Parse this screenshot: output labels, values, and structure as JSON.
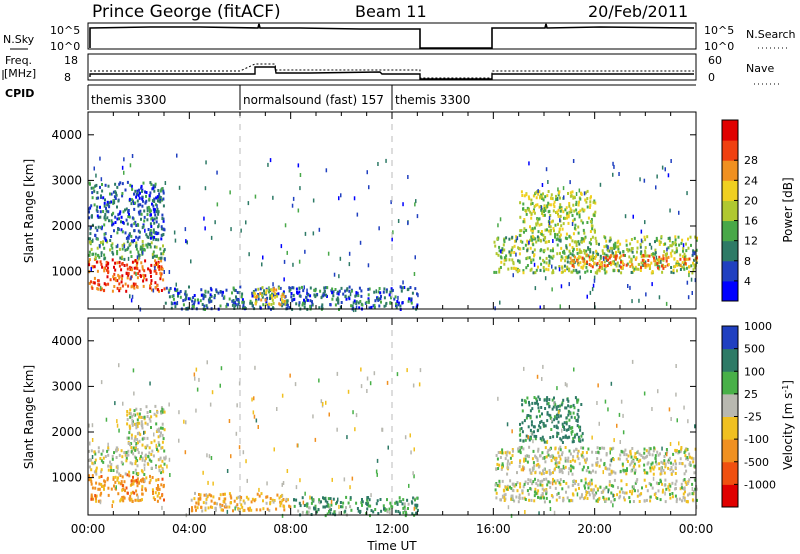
{
  "header": {
    "title": "Prince George (fitACF)",
    "beam": "Beam 11",
    "date": "20/Feb/2011"
  },
  "status_panels": {
    "nsky_label": "N.Sky",
    "nsearch_label": "N.Search",
    "freq_label_line1": "Freq.",
    "freq_label_line2": "[MHz]",
    "nave_label": "Nave",
    "cpid_label": "CPID",
    "nsky_ticks": [
      "10^5",
      "10^0"
    ],
    "nsearch_ticks": [
      "10^5",
      "10^0"
    ],
    "freq_ticks": [
      "18",
      "8"
    ],
    "nave_ticks": [
      "60",
      "0"
    ],
    "cpid_segments": [
      {
        "name": "themis 3300",
        "start": 0.0,
        "end": 6.0
      },
      {
        "name": "normalsound (fast) 157",
        "start": 6.0,
        "end": 12.0
      },
      {
        "name": "themis 3300",
        "start": 12.0,
        "end": 13.1
      }
    ]
  },
  "chart_data": [
    {
      "type": "heatmap",
      "panel": "power",
      "ylabel": "Slant Range [km]",
      "yticks": [
        "1000",
        "2000",
        "3000",
        "4000"
      ],
      "ylim": [
        180,
        4500
      ],
      "xlim": [
        0,
        24
      ],
      "colorbar_label": "Power [dB]",
      "colorbar_ticks": [
        "4",
        "8",
        "12",
        "16",
        "20",
        "24",
        "28"
      ],
      "colorbar_colors": [
        "#0000ff",
        "#2040c0",
        "#2e7a66",
        "#48a848",
        "#b0c830",
        "#f0d020",
        "#f09020",
        "#f04010",
        "#e00000"
      ],
      "data_gap_hours": [
        13.1,
        16.0
      ],
      "regions": [
        {
          "t0": 0.0,
          "t1": 3.0,
          "r0": 600,
          "r1": 1300,
          "level": 28
        },
        {
          "t0": 0.0,
          "t1": 3.0,
          "r0": 1300,
          "r1": 1700,
          "level": 12
        },
        {
          "t0": 0.0,
          "t1": 3.0,
          "r0": 1700,
          "r1": 3000,
          "level": 6
        },
        {
          "t0": 3.0,
          "t1": 13.0,
          "r0": 200,
          "r1": 700,
          "level": 6
        },
        {
          "t0": 6.5,
          "t1": 7.8,
          "r0": 300,
          "r1": 700,
          "level": 20
        },
        {
          "t0": 16.0,
          "t1": 24.0,
          "r0": 1000,
          "r1": 1800,
          "level": 14
        },
        {
          "t0": 17.0,
          "t1": 20.0,
          "r0": 1800,
          "r1": 2800,
          "level": 16
        },
        {
          "t0": 19.0,
          "t1": 24.0,
          "r0": 1100,
          "r1": 1400,
          "level": 24
        }
      ]
    },
    {
      "type": "heatmap",
      "panel": "velocity",
      "ylabel": "Slant Range [km]",
      "xlabel": "Time UT",
      "yticks": [
        "1000",
        "2000",
        "3000",
        "4000"
      ],
      "ylim": [
        180,
        4500
      ],
      "xlim": [
        0,
        24
      ],
      "xticks": [
        "00:00",
        "04:00",
        "08:00",
        "12:00",
        "16:00",
        "20:00",
        "00:00"
      ],
      "colorbar_label": "Velocity [m s^-1]",
      "colorbar_ticks": [
        "1000",
        "500",
        "100",
        "25",
        "-25",
        "-100",
        "-500",
        "-1000"
      ],
      "colorbar_colors": [
        "#2040c0",
        "#2e7a66",
        "#48b048",
        "#b8b8b0",
        "#f0c020",
        "#f09020",
        "#f05010",
        "#e00000"
      ],
      "data_gap_hours": [
        13.1,
        16.0
      ],
      "regions": [
        {
          "t0": 0.0,
          "t1": 3.0,
          "r0": 500,
          "r1": 1100,
          "value": -200
        },
        {
          "t0": 0.0,
          "t1": 3.0,
          "r0": 1100,
          "r1": 1700,
          "value": 0
        },
        {
          "t0": 1.5,
          "t1": 3.0,
          "r0": 1700,
          "r1": 2600,
          "value": 0
        },
        {
          "t0": 4.0,
          "t1": 8.0,
          "r0": 300,
          "r1": 700,
          "value": -150
        },
        {
          "t0": 8.0,
          "t1": 13.0,
          "r0": 200,
          "r1": 600,
          "value": 150
        },
        {
          "t0": 16.0,
          "t1": 24.0,
          "r0": 1100,
          "r1": 1700,
          "value": 0
        },
        {
          "t0": 17.0,
          "t1": 19.5,
          "r0": 1800,
          "r1": 2800,
          "value": 200
        },
        {
          "t0": 16.0,
          "t1": 24.0,
          "r0": 500,
          "r1": 1000,
          "value": 0
        }
      ]
    }
  ]
}
